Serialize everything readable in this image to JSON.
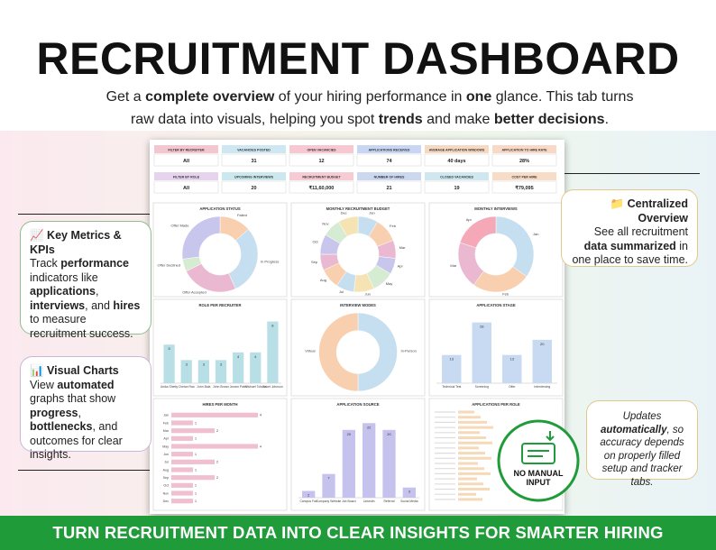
{
  "header": {
    "title": "RECRUITMENT DASHBOARD",
    "subtitle": [
      "Get a ",
      "complete overview",
      " of your hiring performance in ",
      "one",
      " glance. This tab turns raw data into visuals, helping you spot ",
      "trends",
      " and make ",
      "better decisions",
      "."
    ]
  },
  "kpis": [
    {
      "label": "FILTER BY RECRUITER",
      "value": "All",
      "color": "#f4c6cf"
    },
    {
      "label": "VACANCIES POSTED",
      "value": "31",
      "color": "#cfe6f3"
    },
    {
      "label": "OPEN VACANCIES",
      "value": "12",
      "color": "#f7c8d2"
    },
    {
      "label": "APPLICATIONS RECEIVED",
      "value": "74",
      "color": "#c9d6f3"
    },
    {
      "label": "AVERAGE APPLICATION WINDOWS",
      "value": "40 days",
      "color": "#f6d9c3"
    },
    {
      "label": "APPLICATION TO HIRE RATE",
      "value": "28%",
      "color": "#f8d9c8"
    },
    {
      "label": "FILTER BY ROLE",
      "value": "All",
      "color": "#e6d3ee"
    },
    {
      "label": "UPCOMING INTERVIEWS",
      "value": "20",
      "color": "#cbe8ee"
    },
    {
      "label": "RECRUITMENT BUDGET",
      "value": "₹11,60,000",
      "color": "#f6cbd4"
    },
    {
      "label": "NUMBER OF HIRES",
      "value": "21",
      "color": "#cbd8f0"
    },
    {
      "label": "CLOSED VACANCIES",
      "value": "19",
      "color": "#cfe8f0"
    },
    {
      "label": "COST PER HIRE",
      "value": "₹79,095",
      "color": "#f7dcc7"
    }
  ],
  "chart_data": [
    {
      "type": "donut",
      "title": "APPLICATION STATUS",
      "categories": [
        "Failed",
        "In Progress",
        "Offer Accepted",
        "Offer Declined",
        "Offer Made"
      ],
      "values": [
        10,
        22,
        18,
        4,
        20
      ],
      "colors": [
        "#f8d0b0",
        "#c5dff0",
        "#eab8d0",
        "#d6ecd2",
        "#c9c6ee"
      ]
    },
    {
      "type": "donut",
      "title": "MONTHLY RECRUITMENT BUDGET",
      "categories": [
        "Jan",
        "Feb",
        "Mar",
        "Apr",
        "May",
        "Jun",
        "Jul",
        "Aug",
        "Sep",
        "Oct",
        "Nov",
        "Dec"
      ],
      "values": [
        100000,
        120000,
        90000,
        80000,
        110000,
        100000,
        90000,
        100000,
        80000,
        100000,
        90000,
        100000
      ],
      "colors": [
        "#c5dff0",
        "#f8d0b0",
        "#eab8d0",
        "#c9c6ee",
        "#d6ecd2",
        "#f6e3b4",
        "#c5dff0",
        "#f8d0b0",
        "#eab8d0",
        "#c9c6ee",
        "#d6ecd2",
        "#f6e3b4"
      ]
    },
    {
      "type": "donut",
      "title": "MONTHLY INTERVIEWS",
      "categories": [
        "Jan",
        "Feb",
        "Mar",
        "Apr"
      ],
      "values": [
        7,
        5,
        4,
        4
      ],
      "colors": [
        "#c5dff0",
        "#f8d0b0",
        "#eab8d0",
        "#f4a8b8"
      ]
    },
    {
      "type": "vbar",
      "title": "ROLE PER RECRUITER",
      "categories": [
        "Anika Shetty",
        "Chetan Rao",
        "John Bala",
        "John Brown",
        "Jonam Patel",
        "Michael Tolson",
        "Saket Johnson"
      ],
      "values": [
        5,
        3,
        3,
        3,
        4,
        4,
        8
      ],
      "color": "#b9dfe6",
      "ylim": [
        0,
        9
      ]
    },
    {
      "type": "donut",
      "title": "INTERVIEW MODES",
      "categories": [
        "In-Person",
        "Virtual"
      ],
      "values": [
        10,
        10
      ],
      "colors": [
        "#c5dff0",
        "#f8d0b0"
      ]
    },
    {
      "type": "vbar",
      "title": "APPLICATION STAGE",
      "categories": [
        "Technical Test",
        "Screening",
        "Offer",
        "Interviewing"
      ],
      "values": [
        13,
        28,
        13,
        20
      ],
      "color": "#c7daf2",
      "ylim": [
        0,
        32
      ]
    },
    {
      "type": "hbar",
      "title": "HIRES PER MONTH",
      "categories": [
        "Jan",
        "Feb",
        "Mar",
        "Apr",
        "May",
        "Jun",
        "Jul",
        "Aug",
        "Sep",
        "Oct",
        "Nov",
        "Dec"
      ],
      "values": [
        4,
        1,
        2,
        1,
        4,
        1,
        2,
        1,
        2,
        1,
        1,
        1
      ],
      "color": "#f1c0d0",
      "xlim": [
        0,
        5
      ]
    },
    {
      "type": "vbar",
      "title": "APPLICATION SOURCE",
      "categories": [
        "Campus Fair",
        "Company Website",
        "Job Board",
        "LinkedIn",
        "Referral",
        "Social Media"
      ],
      "values": [
        2,
        7,
        20,
        22,
        20,
        3
      ],
      "color": "#c5c3ee",
      "ylim": [
        0,
        25
      ]
    }
  ],
  "extra_panel": {
    "title": "APPLICATIONS PER ROLE"
  },
  "callouts": [
    {
      "heading": "📈 Key Metrics & KPIs",
      "body": [
        "Track ",
        "performance",
        " indicators like ",
        "applications",
        ", ",
        "interviews",
        ", and ",
        "hires",
        " to measure recruitment success."
      ]
    },
    {
      "heading": "📊 Visual Charts",
      "body": [
        "View ",
        "automated",
        " graphs that show ",
        "progress",
        ", ",
        "bottlenecks",
        ", and outcomes for clear insights."
      ]
    },
    {
      "heading": "📁 Centralized Overview",
      "body": [
        "See all recruitment ",
        "data summarized",
        " in one place to save time."
      ]
    },
    {
      "heading": "",
      "body": [
        "Updates ",
        "automatically",
        ", so accuracy depends on properly filled setup and tracker tabs."
      ]
    }
  ],
  "badge": {
    "label": "NO MANUAL INPUT"
  },
  "footer": {
    "text": "TURN RECRUITMENT DATA INTO CLEAR INSIGHTS FOR SMARTER HIRING STRATEGIES"
  }
}
